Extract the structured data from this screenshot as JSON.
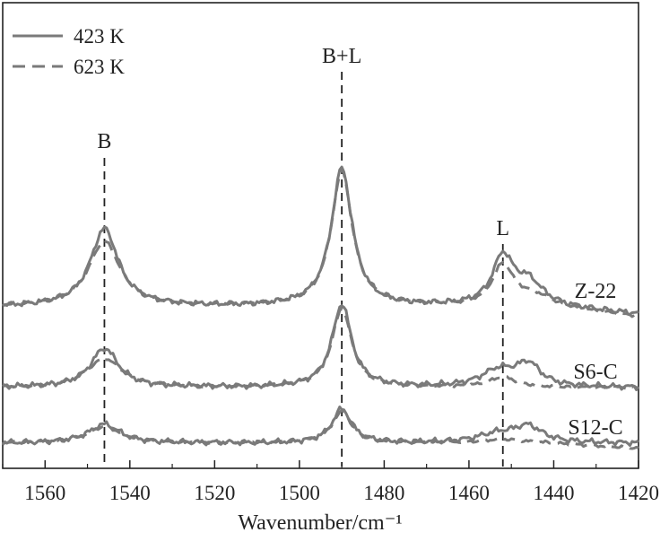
{
  "chart_data": {
    "type": "line",
    "title": "",
    "xlabel": "Wavenumber/cm⁻¹",
    "ylabel": "",
    "xlim": [
      1570,
      1420
    ],
    "x_reversed": true,
    "x_ticks": [
      1560,
      1540,
      1520,
      1500,
      1480,
      1460,
      1440,
      1420
    ],
    "y_axis_visible": false,
    "grid": false,
    "legend": {
      "placement": "top-left",
      "entries": [
        {
          "label": "423 K",
          "style": "solid"
        },
        {
          "label": "623 K",
          "style": "dashed"
        }
      ]
    },
    "reference_lines": [
      {
        "label": "B",
        "x": 1546
      },
      {
        "label": "B+L",
        "x": 1490
      },
      {
        "label": "L",
        "x": 1452
      }
    ],
    "series_color": "#7a7a7a",
    "curves": [
      {
        "name": "Z-22",
        "baseline": 0.0,
        "solid_peaks": [
          [
            1546,
            0.62,
            4.0
          ],
          [
            1490,
            1.1,
            3.0
          ],
          [
            1452,
            0.38,
            3.0
          ],
          [
            1446,
            0.18,
            4.0
          ]
        ],
        "dashed_peaks": [
          [
            1546,
            0.52,
            4.5
          ],
          [
            1490,
            1.08,
            3.0
          ],
          [
            1452,
            0.32,
            3.0
          ],
          [
            1445,
            0.08,
            5.0
          ]
        ],
        "solid_end_offset": -0.06,
        "dashed_end_offset": -0.08
      },
      {
        "name": "S6-C",
        "baseline": -0.55,
        "solid_peaks": [
          [
            1546,
            0.31,
            4.0
          ],
          [
            1490,
            0.66,
            2.8
          ],
          [
            1453,
            0.13,
            5.0
          ],
          [
            1446,
            0.17,
            3.5
          ]
        ],
        "dashed_peaks": [
          [
            1546,
            0.23,
            5.0
          ],
          [
            1490,
            0.63,
            2.8
          ],
          [
            1452,
            0.08,
            4.0
          ]
        ],
        "solid_end_offset": 0.0,
        "dashed_end_offset": 0.0
      },
      {
        "name": "S12-C",
        "baseline": -0.8,
        "solid_peaks": [
          [
            1546,
            0.15,
            4.5
          ],
          [
            1490,
            0.27,
            2.8
          ],
          [
            1453,
            0.07,
            6.0
          ],
          [
            1446,
            0.12,
            4.0
          ]
        ],
        "dashed_peaks": [
          [
            1546,
            0.13,
            5.0
          ],
          [
            1490,
            0.25,
            2.8
          ],
          [
            1452,
            0.03,
            6.0
          ]
        ],
        "solid_end_offset": 0.0,
        "dashed_end_offset": -0.04
      }
    ]
  }
}
